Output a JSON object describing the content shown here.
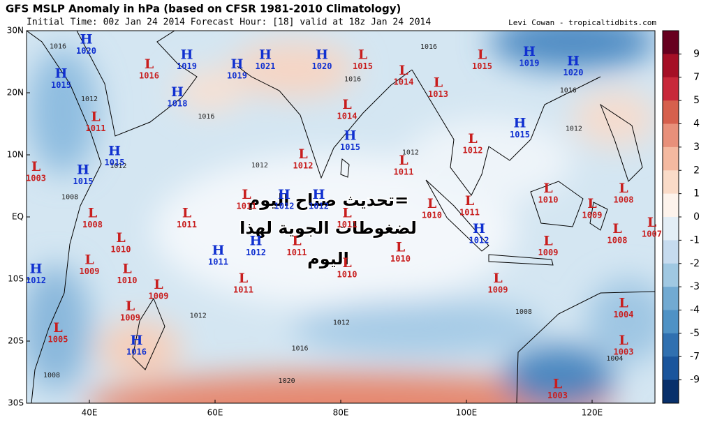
{
  "header": {
    "title": "GFS MSLP Anomaly in hPa (based on CFSR 1981-2010 Climatology)",
    "subtitle": "Initial Time: 00z Jan 24 2014 Forecast Hour: [18] valid at 18z Jan 24 2014",
    "credit": "Levi Cowan - tropicaltidbits.com"
  },
  "map": {
    "lon_range": [
      30,
      130
    ],
    "lat_range": [
      -30,
      30
    ],
    "h_color": "#1030d0",
    "l_color": "#c81e1e",
    "xticks": [
      {
        "value": 40,
        "label": "40E"
      },
      {
        "value": 60,
        "label": "60E"
      },
      {
        "value": 80,
        "label": "80E"
      },
      {
        "value": 100,
        "label": "100E"
      },
      {
        "value": 120,
        "label": "120E"
      }
    ],
    "yticks": [
      {
        "value": 30,
        "label": "30N"
      },
      {
        "value": 20,
        "label": "20N"
      },
      {
        "value": 10,
        "label": "10N"
      },
      {
        "value": 0,
        "label": "EQ"
      },
      {
        "value": -10,
        "label": "10S"
      },
      {
        "value": -20,
        "label": "20S"
      },
      {
        "value": -30,
        "label": "30S"
      }
    ],
    "centers": [
      {
        "type": "H",
        "value": 1020,
        "lon": 39.5,
        "lat": 28.5
      },
      {
        "type": "H",
        "value": 1019,
        "lon": 55.5,
        "lat": 26
      },
      {
        "type": "H",
        "value": 1021,
        "lon": 68,
        "lat": 26
      },
      {
        "type": "H",
        "value": 1020,
        "lon": 77,
        "lat": 26
      },
      {
        "type": "L",
        "value": 1015,
        "lon": 83.5,
        "lat": 26
      },
      {
        "type": "L",
        "value": 1015,
        "lon": 102.5,
        "lat": 26
      },
      {
        "type": "H",
        "value": 1019,
        "lon": 110,
        "lat": 26.5
      },
      {
        "type": "H",
        "value": 1020,
        "lon": 117,
        "lat": 25
      },
      {
        "type": "L",
        "value": 1016,
        "lon": 49.5,
        "lat": 24.5
      },
      {
        "type": "H",
        "value": 1019,
        "lon": 63.5,
        "lat": 24.5
      },
      {
        "type": "H",
        "value": 1015,
        "lon": 35.5,
        "lat": 23
      },
      {
        "type": "L",
        "value": 1014,
        "lon": 90,
        "lat": 23.5
      },
      {
        "type": "L",
        "value": 1013,
        "lon": 95.5,
        "lat": 21.5
      },
      {
        "type": "H",
        "value": 1018,
        "lon": 54,
        "lat": 20
      },
      {
        "type": "L",
        "value": 1014,
        "lon": 81,
        "lat": 18
      },
      {
        "type": "L",
        "value": 1011,
        "lon": 41,
        "lat": 16
      },
      {
        "type": "H",
        "value": 1015,
        "lon": 108.5,
        "lat": 15
      },
      {
        "type": "H",
        "value": 1015,
        "lon": 81.5,
        "lat": 13
      },
      {
        "type": "L",
        "value": 1012,
        "lon": 101,
        "lat": 12.5
      },
      {
        "type": "H",
        "value": 1015,
        "lon": 44,
        "lat": 10.5
      },
      {
        "type": "L",
        "value": 1012,
        "lon": 74,
        "lat": 10
      },
      {
        "type": "L",
        "value": 1011,
        "lon": 90,
        "lat": 9
      },
      {
        "type": "L",
        "value": 1003,
        "lon": 31.5,
        "lat": 8
      },
      {
        "type": "H",
        "value": 1015,
        "lon": 39,
        "lat": 7.5
      },
      {
        "type": "L",
        "value": 1010,
        "lon": 113,
        "lat": 4.5
      },
      {
        "type": "L",
        "value": 1008,
        "lon": 125,
        "lat": 4.5
      },
      {
        "type": "H",
        "value": 1012,
        "lon": 71,
        "lat": 3.5
      },
      {
        "type": "H",
        "value": 1012,
        "lon": 76.5,
        "lat": 3.5
      },
      {
        "type": "L",
        "value": 1011,
        "lon": 65,
        "lat": 3.5
      },
      {
        "type": "L",
        "value": 1011,
        "lon": 100.5,
        "lat": 2.5
      },
      {
        "type": "L",
        "value": 1010,
        "lon": 94.5,
        "lat": 2
      },
      {
        "type": "L",
        "value": 1011,
        "lon": 55.5,
        "lat": 0.5
      },
      {
        "type": "L",
        "value": 1009,
        "lon": 120,
        "lat": 2
      },
      {
        "type": "L",
        "value": 1008,
        "lon": 40.5,
        "lat": 0.5
      },
      {
        "type": "L",
        "value": 1011,
        "lon": 81,
        "lat": 0.5
      },
      {
        "type": "L",
        "value": 1007,
        "lon": 129.5,
        "lat": -1
      },
      {
        "type": "L",
        "value": 1008,
        "lon": 124,
        "lat": -2
      },
      {
        "type": "H",
        "value": 1012,
        "lon": 102,
        "lat": -2
      },
      {
        "type": "L",
        "value": 1010,
        "lon": 45,
        "lat": -3.5
      },
      {
        "type": "H",
        "value": 1012,
        "lon": 66.5,
        "lat": -4
      },
      {
        "type": "L",
        "value": 1011,
        "lon": 73,
        "lat": -4
      },
      {
        "type": "L",
        "value": 1010,
        "lon": 89.5,
        "lat": -5
      },
      {
        "type": "L",
        "value": 1009,
        "lon": 113,
        "lat": -4
      },
      {
        "type": "H",
        "value": 1011,
        "lon": 60.5,
        "lat": -5.5
      },
      {
        "type": "L",
        "value": 1009,
        "lon": 40,
        "lat": -7
      },
      {
        "type": "L",
        "value": 1010,
        "lon": 81,
        "lat": -7.5
      },
      {
        "type": "L",
        "value": 1010,
        "lon": 46,
        "lat": -8.5
      },
      {
        "type": "H",
        "value": 1012,
        "lon": 31.5,
        "lat": -8.5
      },
      {
        "type": "L",
        "value": 1009,
        "lon": 51,
        "lat": -11
      },
      {
        "type": "L",
        "value": 1011,
        "lon": 64.5,
        "lat": -10
      },
      {
        "type": "L",
        "value": 1009,
        "lon": 105,
        "lat": -10
      },
      {
        "type": "L",
        "value": 1009,
        "lon": 46.5,
        "lat": -14.5
      },
      {
        "type": "L",
        "value": 1004,
        "lon": 125,
        "lat": -14
      },
      {
        "type": "L",
        "value": 1005,
        "lon": 35,
        "lat": -18
      },
      {
        "type": "H",
        "value": 1016,
        "lon": 47.5,
        "lat": -20
      },
      {
        "type": "L",
        "value": 1003,
        "lon": 125,
        "lat": -20
      },
      {
        "type": "L",
        "value": 1003,
        "lon": 114.5,
        "lat": -27
      }
    ],
    "isobar_labels": [
      {
        "value": 1016,
        "lon": 35,
        "lat": 27.5
      },
      {
        "value": 1012,
        "lon": 40,
        "lat": 19
      },
      {
        "value": 1012,
        "lon": 44.6,
        "lat": 8.2
      },
      {
        "value": 1008,
        "lon": 36.9,
        "lat": 3.2
      },
      {
        "value": 1016,
        "lon": 58.6,
        "lat": 16.2
      },
      {
        "value": 1012,
        "lon": 67.1,
        "lat": 8.3
      },
      {
        "value": 1016,
        "lon": 81.9,
        "lat": 22.2
      },
      {
        "value": 1012,
        "lon": 91.1,
        "lat": 10.4
      },
      {
        "value": 1016,
        "lon": 94,
        "lat": 27.4
      },
      {
        "value": 1016,
        "lon": 116.2,
        "lat": 20.4
      },
      {
        "value": 1012,
        "lon": 117.1,
        "lat": 14.2
      },
      {
        "value": 1012,
        "lon": 57.3,
        "lat": -15.9
      },
      {
        "value": 1012,
        "lon": 80.1,
        "lat": -17
      },
      {
        "value": 1008,
        "lon": 109.1,
        "lat": -15.3
      },
      {
        "value": 1016,
        "lon": 73.5,
        "lat": -21.2
      },
      {
        "value": 1020,
        "lon": 71.4,
        "lat": -26.4
      },
      {
        "value": 1004,
        "lon": 123.6,
        "lat": -22.8
      },
      {
        "value": 1008,
        "lon": 34,
        "lat": -25.5
      }
    ]
  },
  "colorbar": {
    "ticks": [
      9,
      7,
      5,
      4,
      3,
      2,
      1,
      0,
      -1,
      -2,
      -3,
      -4,
      -5,
      -7,
      -9
    ],
    "colors": [
      "#67001f",
      "#a50f26",
      "#c8283a",
      "#d6604d",
      "#e8907a",
      "#f4b9a0",
      "#fadbc8",
      "#fdf3ec",
      "#e3eef6",
      "#c6dbef",
      "#a0c8e2",
      "#72aad2",
      "#4f92c5",
      "#3070b0",
      "#1a559c",
      "#08306b"
    ]
  },
  "overlay": {
    "lines": [
      "=تحديث صباح اليوم",
      "لضغوطات الجوية لهذا",
      "اليوم"
    ]
  }
}
